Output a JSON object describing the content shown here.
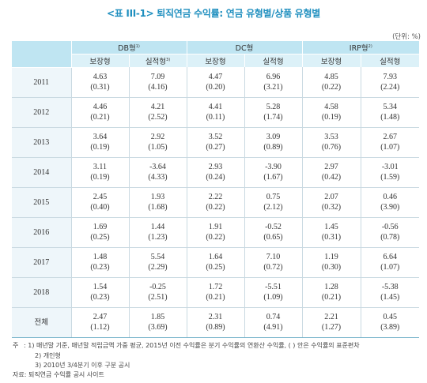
{
  "title": "<표 III-1> 퇴직연금 수익률: 연금 유형별/상품 유형별",
  "unit": "(단위: %)",
  "groups": [
    {
      "label": "DB형",
      "sup": "1)"
    },
    {
      "label": "DC형",
      "sup": ""
    },
    {
      "label": "IRP형",
      "sup": "2)"
    }
  ],
  "subheaders": [
    {
      "label": "보장형",
      "sup": ""
    },
    {
      "label": "실적형",
      "sup": "3)"
    },
    {
      "label": "보장형",
      "sup": ""
    },
    {
      "label": "실적형",
      "sup": ""
    },
    {
      "label": "보장형",
      "sup": ""
    },
    {
      "label": "실적형",
      "sup": ""
    }
  ],
  "rows": [
    {
      "year": "2011",
      "cells": [
        [
          "4.63",
          "(0.31)"
        ],
        [
          "7.09",
          "(4.16)"
        ],
        [
          "4.47",
          "(0.20)"
        ],
        [
          "6.96",
          "(3.21)"
        ],
        [
          "4.85",
          "(0.22)"
        ],
        [
          "7.93",
          "(2.24)"
        ]
      ]
    },
    {
      "year": "2012",
      "cells": [
        [
          "4.46",
          "(0.21)"
        ],
        [
          "4.21",
          "(2.52)"
        ],
        [
          "4.41",
          "(0.11)"
        ],
        [
          "5.28",
          "(1.74)"
        ],
        [
          "4.58",
          "(0.19)"
        ],
        [
          "5.34",
          "(1.48)"
        ]
      ]
    },
    {
      "year": "2013",
      "cells": [
        [
          "3.64",
          "(0.19)"
        ],
        [
          "2.92",
          "(1.05)"
        ],
        [
          "3.52",
          "(0.27)"
        ],
        [
          "3.09",
          "(0.89)"
        ],
        [
          "3.53",
          "(0.76)"
        ],
        [
          "2.67",
          "(1.07)"
        ]
      ]
    },
    {
      "year": "2014",
      "cells": [
        [
          "3.11",
          "(0.19)"
        ],
        [
          "-3.64",
          "(4.33)"
        ],
        [
          "2.93",
          "(0.24)"
        ],
        [
          "-3.90",
          "(1.67)"
        ],
        [
          "2.97",
          "(0.42)"
        ],
        [
          "-3.01",
          "(1.59)"
        ]
      ]
    },
    {
      "year": "2015",
      "cells": [
        [
          "2.45",
          "(0.40)"
        ],
        [
          "1.93",
          "(1.68)"
        ],
        [
          "2.22",
          "(0.22)"
        ],
        [
          "0.75",
          "(2.12)"
        ],
        [
          "2.07",
          "(0.32)"
        ],
        [
          "0.46",
          "(3.90)"
        ]
      ]
    },
    {
      "year": "2016",
      "cells": [
        [
          "1.69",
          "(0.25)"
        ],
        [
          "1.44",
          "(1.23)"
        ],
        [
          "1.91",
          "(0.22)"
        ],
        [
          "-0.52",
          "(0.65)"
        ],
        [
          "1.45",
          "(0.31)"
        ],
        [
          "-0.56",
          "(0.78)"
        ]
      ]
    },
    {
      "year": "2017",
      "cells": [
        [
          "1.48",
          "(0.23)"
        ],
        [
          "5.54",
          "(2.29)"
        ],
        [
          "1.64",
          "(0.25)"
        ],
        [
          "7.10",
          "(0.72)"
        ],
        [
          "1.19",
          "(0.30)"
        ],
        [
          "6.64",
          "(1.07)"
        ]
      ]
    },
    {
      "year": "2018",
      "cells": [
        [
          "1.54",
          "(0.23)"
        ],
        [
          "-0.25",
          "(2.51)"
        ],
        [
          "1.72",
          "(0.21)"
        ],
        [
          "-5.51",
          "(1.09)"
        ],
        [
          "1.28",
          "(0.21)"
        ],
        [
          "-5.38",
          "(1.45)"
        ]
      ]
    },
    {
      "year": "전체",
      "cells": [
        [
          "2.47",
          "(1.12)"
        ],
        [
          "1.85",
          "(3.69)"
        ],
        [
          "2.31",
          "(0.89)"
        ],
        [
          "0.74",
          "(4.91)"
        ],
        [
          "2.21",
          "(1.27)"
        ],
        [
          "0.45",
          "(3.89)"
        ]
      ]
    }
  ],
  "notes": {
    "label": "주",
    "items": [
      ": 1) 매년말 기준, 매년말 적립금액 가중 평균, 2015년 이전 수익률은 분기 수익률의 연환산 수익률, ( ) 안은 수익률의 표준편차",
      "2) 개인형",
      "3) 2010년 3/4분기 이후 구분 공시"
    ]
  },
  "source": "자료: 퇴직연금 수익률 공시 사이트"
}
